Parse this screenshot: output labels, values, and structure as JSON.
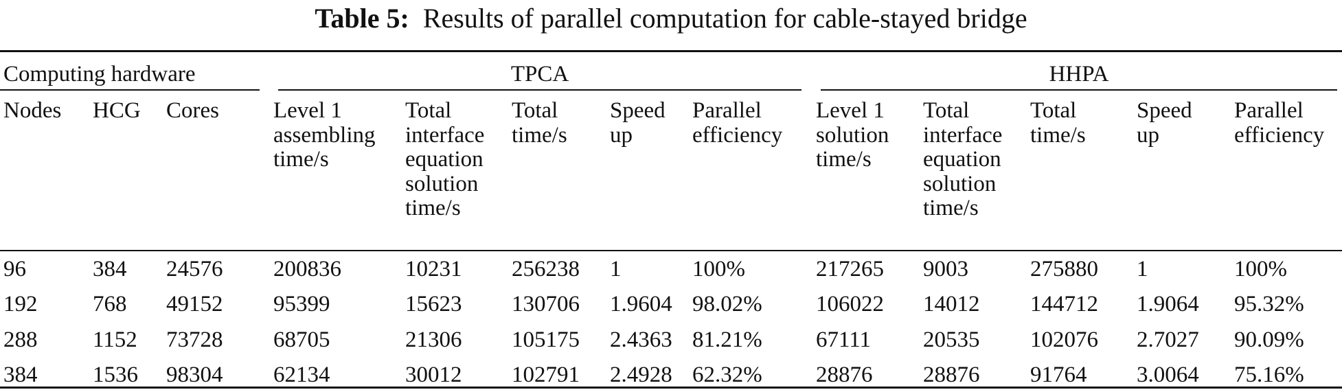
{
  "caption": {
    "label": "Table 5:",
    "text": "Results of parallel computation for cable-stayed bridge"
  },
  "groups": {
    "hardware": "Computing hardware",
    "tpca": "TPCA",
    "hhpa": "HHPA"
  },
  "headers": {
    "nodes": [
      "Nodes"
    ],
    "hcg": [
      "HCG"
    ],
    "cores": [
      "Cores"
    ],
    "tpca_level1": [
      "Level 1",
      "assembling",
      "time/s"
    ],
    "tpca_interface": [
      "Total",
      "interface",
      "equation",
      "solution",
      "time/s"
    ],
    "tpca_total": [
      "Total",
      "time/s"
    ],
    "tpca_speed": [
      "Speed",
      "up"
    ],
    "tpca_eff": [
      "Parallel",
      "efficiency"
    ],
    "hhpa_level1": [
      "Level 1",
      "solution",
      "time/s"
    ],
    "hhpa_interface": [
      "Total",
      "interface",
      "equation",
      "solution",
      "time/s"
    ],
    "hhpa_total": [
      "Total",
      "time/s"
    ],
    "hhpa_speed": [
      "Speed",
      "up"
    ],
    "hhpa_eff": [
      "Parallel",
      "efficiency"
    ]
  },
  "rows": [
    [
      "96",
      "384",
      "24576",
      "200836",
      "10231",
      "256238",
      "1",
      "100%",
      "217265",
      "9003",
      "275880",
      "1",
      "100%"
    ],
    [
      "192",
      "768",
      "49152",
      "95399",
      "15623",
      "130706",
      "1.9604",
      "98.02%",
      "106022",
      "14012",
      "144712",
      "1.9064",
      "95.32%"
    ],
    [
      "288",
      "1152",
      "73728",
      "68705",
      "21306",
      "105175",
      "2.4363",
      "81.21%",
      "67111",
      "20535",
      "102076",
      "2.7027",
      "90.09%"
    ],
    [
      "384",
      "1536",
      "98304",
      "62134",
      "30012",
      "102791",
      "2.4928",
      "62.32%",
      "28876",
      "28876",
      "91764",
      "3.0064",
      "75.16%"
    ]
  ]
}
